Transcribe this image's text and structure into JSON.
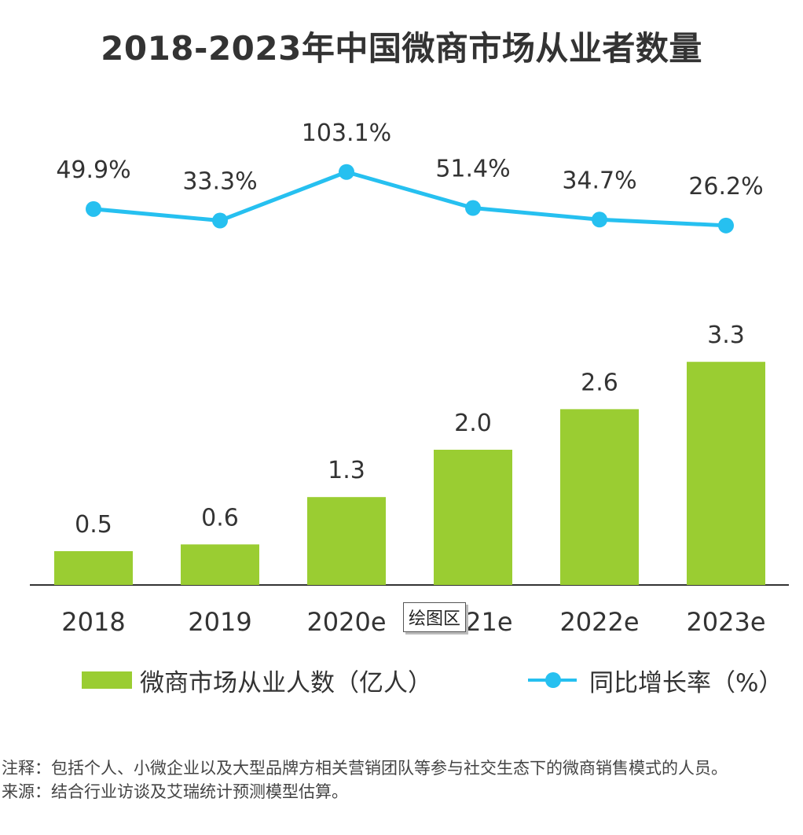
{
  "title": "2018-2023年中国微商市场从业者数量",
  "colors": {
    "bar": "#9ACD32",
    "line": "#26C0F0",
    "axis": "#333333"
  },
  "chart_data": {
    "type": "bar",
    "title": "2018-2023年中国微商市场从业者数量",
    "categories": [
      "2018",
      "2019",
      "2020e",
      "2021e",
      "2022e",
      "2023e"
    ],
    "series": [
      {
        "name": "微商市场从业人数（亿人）",
        "type": "bar",
        "values": [
          0.5,
          0.6,
          1.3,
          2.0,
          2.6,
          3.3
        ],
        "labels": [
          "0.5",
          "0.6",
          "1.3",
          "2.0",
          "2.6",
          "3.3"
        ]
      },
      {
        "name": "同比增长率（%）",
        "type": "line",
        "values": [
          49.9,
          33.3,
          103.1,
          51.4,
          34.7,
          26.2
        ],
        "labels": [
          "49.9%",
          "33.3%",
          "103.1%",
          "51.4%",
          "34.7%",
          "26.2%"
        ]
      }
    ],
    "grid": false,
    "legend_position": "bottom"
  },
  "legend": {
    "bar_label": "微商市场从业人数（亿人）",
    "line_label": "同比增长率（%）"
  },
  "tooltip": {
    "text": "绘图区"
  },
  "notes": {
    "note": "注释：包括个人、小微企业以及大型品牌方相关营销团队等参与社交生态下的微商销售模式的人员。",
    "source": "来源：结合行业访谈及艾瑞统计预测模型估算。"
  }
}
